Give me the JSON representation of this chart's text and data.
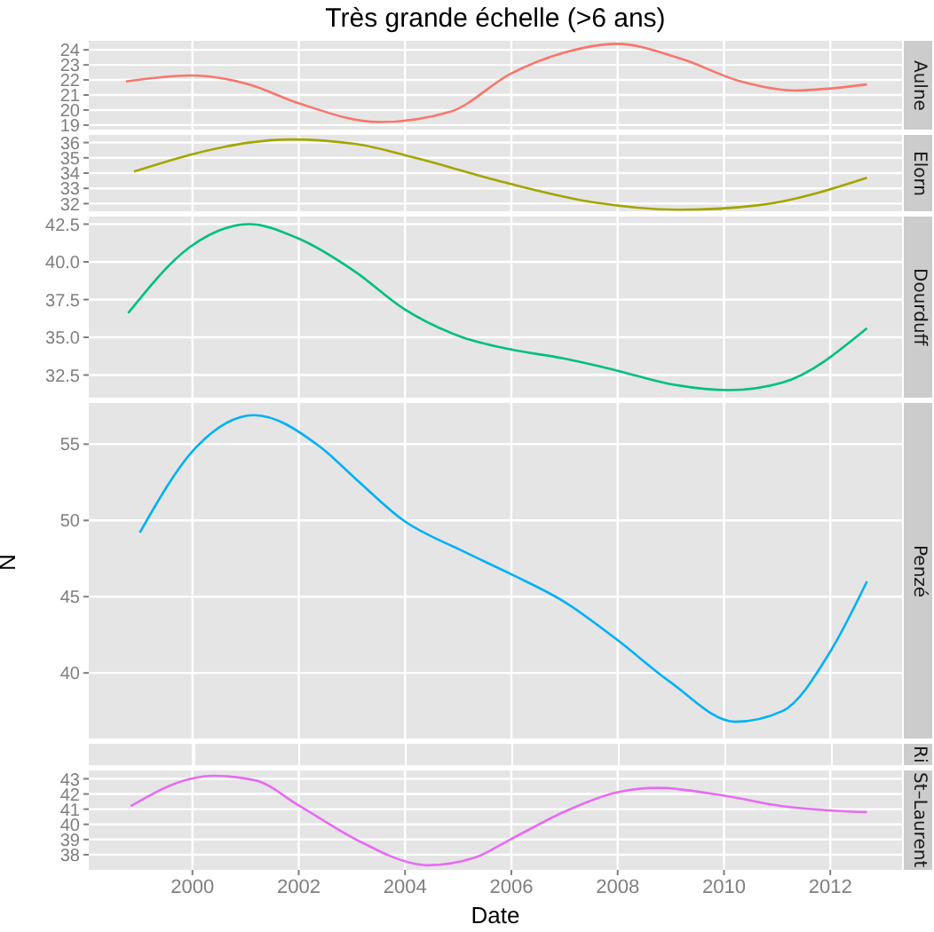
{
  "chart_data": [
    {
      "type": "line",
      "title": "Très grande échelle (>6 ans)",
      "x": [
        1998.75,
        1999.96,
        2001.07,
        2001.96,
        2003.52,
        2004.86,
        2005.98,
        2006.98,
        2007.98,
        2009.2,
        2010.32,
        2011.33,
        2012.69
      ],
      "series": [
        {
          "name": "Aulne",
          "color": "#f8766d",
          "values": [
            21.9,
            22.3,
            21.7,
            20.5,
            19.2,
            19.9,
            22.4,
            23.8,
            24.4,
            23.4,
            21.9,
            21.3,
            21.7
          ]
        }
      ],
      "xlim": [
        1998.05,
        2013.35
      ],
      "xticks": [
        2000,
        2002,
        2004,
        2006,
        2008,
        2010,
        2012
      ],
      "ylim": [
        18.7,
        24.6
      ],
      "yticks": [
        19,
        20,
        21,
        22,
        23,
        24
      ],
      "grid": true,
      "tick_labels": "y"
    },
    {
      "type": "line",
      "x": [
        1998.9,
        2000.07,
        2001.07,
        2001.85,
        2003.08,
        2004.19,
        2005.86,
        2007.53,
        2009.2,
        2010.66,
        2012.69
      ],
      "series": [
        {
          "name": "Elorn",
          "color": "#a3a500",
          "values": [
            34.1,
            35.3,
            36.0,
            36.2,
            35.9,
            35.0,
            33.4,
            32.1,
            31.6,
            31.9,
            33.7
          ]
        }
      ],
      "xlim": [
        1998.05,
        2013.35
      ],
      "xticks": [
        2000,
        2002,
        2004,
        2006,
        2008,
        2010,
        2012
      ],
      "ylim": [
        31.5,
        36.5
      ],
      "yticks": [
        32,
        33,
        34,
        35,
        36
      ],
      "grid": true,
      "tick_labels": "y"
    },
    {
      "type": "line",
      "x": [
        1998.79,
        1999.96,
        2001.07,
        2001.96,
        2003.08,
        2003.97,
        2005.08,
        2005.98,
        2006.98,
        2007.98,
        2008.99,
        2010.1,
        2011.1,
        2012.69
      ],
      "series": [
        {
          "name": "Dourduff",
          "color": "#00bf7d",
          "values": [
            36.6,
            41.0,
            42.5,
            41.6,
            39.3,
            36.9,
            35.0,
            34.2,
            33.6,
            32.8,
            31.9,
            31.5,
            32.0,
            35.6
          ]
        }
      ],
      "xlim": [
        1998.05,
        2013.35
      ],
      "xticks": [
        2000,
        2002,
        2004,
        2006,
        2008,
        2010,
        2012
      ],
      "ylim": [
        31.0,
        43.0
      ],
      "yticks": [
        32.5,
        {
          "value": 35,
          "label": "35.0"
        },
        37.5,
        {
          "value": 40,
          "label": "40.0"
        },
        42.5
      ],
      "grid": true,
      "tick_labels": "y"
    },
    {
      "type": "line",
      "ylabel": "N",
      "x": [
        1999.01,
        2000.07,
        2001.16,
        2002.41,
        2003.08,
        2003.97,
        2005.08,
        2005.98,
        2006.98,
        2007.98,
        2008.99,
        2010.21,
        2011.1,
        2012.0,
        2012.69
      ],
      "series": [
        {
          "name": "Penzé",
          "color": "#00b0f6",
          "values": [
            49.2,
            54.8,
            56.9,
            54.8,
            52.7,
            50.0,
            48.0,
            46.5,
            44.7,
            42.2,
            39.4,
            36.8,
            37.5,
            41.4,
            46.0
          ]
        }
      ],
      "xlim": [
        1998.05,
        2013.35
      ],
      "xticks": [
        2000,
        2002,
        2004,
        2006,
        2008,
        2010,
        2012
      ],
      "ylim": [
        35.7,
        57.7
      ],
      "yticks": [
        40,
        45,
        50,
        55
      ],
      "grid": true,
      "tick_labels": "y"
    },
    {
      "type": "other",
      "annotations": [
        "Ri"
      ]
    },
    {
      "type": "line",
      "xlabel": "Date",
      "x": [
        1998.84,
        1999.96,
        2000.4,
        2001.18,
        2002.02,
        2003.08,
        2004.19,
        2004.41,
        2005.31,
        2005.98,
        2006.98,
        2007.98,
        2008.76,
        2009.99,
        2011.1,
        2012.69
      ],
      "series": [
        {
          "name": "St–Laurent",
          "color": "#e76bf3",
          "values": [
            41.2,
            43.0,
            43.2,
            42.9,
            41.2,
            39.0,
            37.4,
            37.3,
            37.8,
            39.0,
            40.8,
            42.1,
            42.4,
            41.9,
            41.2,
            40.8
          ]
        }
      ],
      "xlim": [
        1998.05,
        2013.35
      ],
      "xticks": [
        2000,
        2002,
        2004,
        2006,
        2008,
        2010,
        2012
      ],
      "ylim": [
        37.0,
        43.55
      ],
      "yticks": [
        38,
        39,
        40,
        41,
        42,
        43
      ],
      "grid": true
    }
  ]
}
